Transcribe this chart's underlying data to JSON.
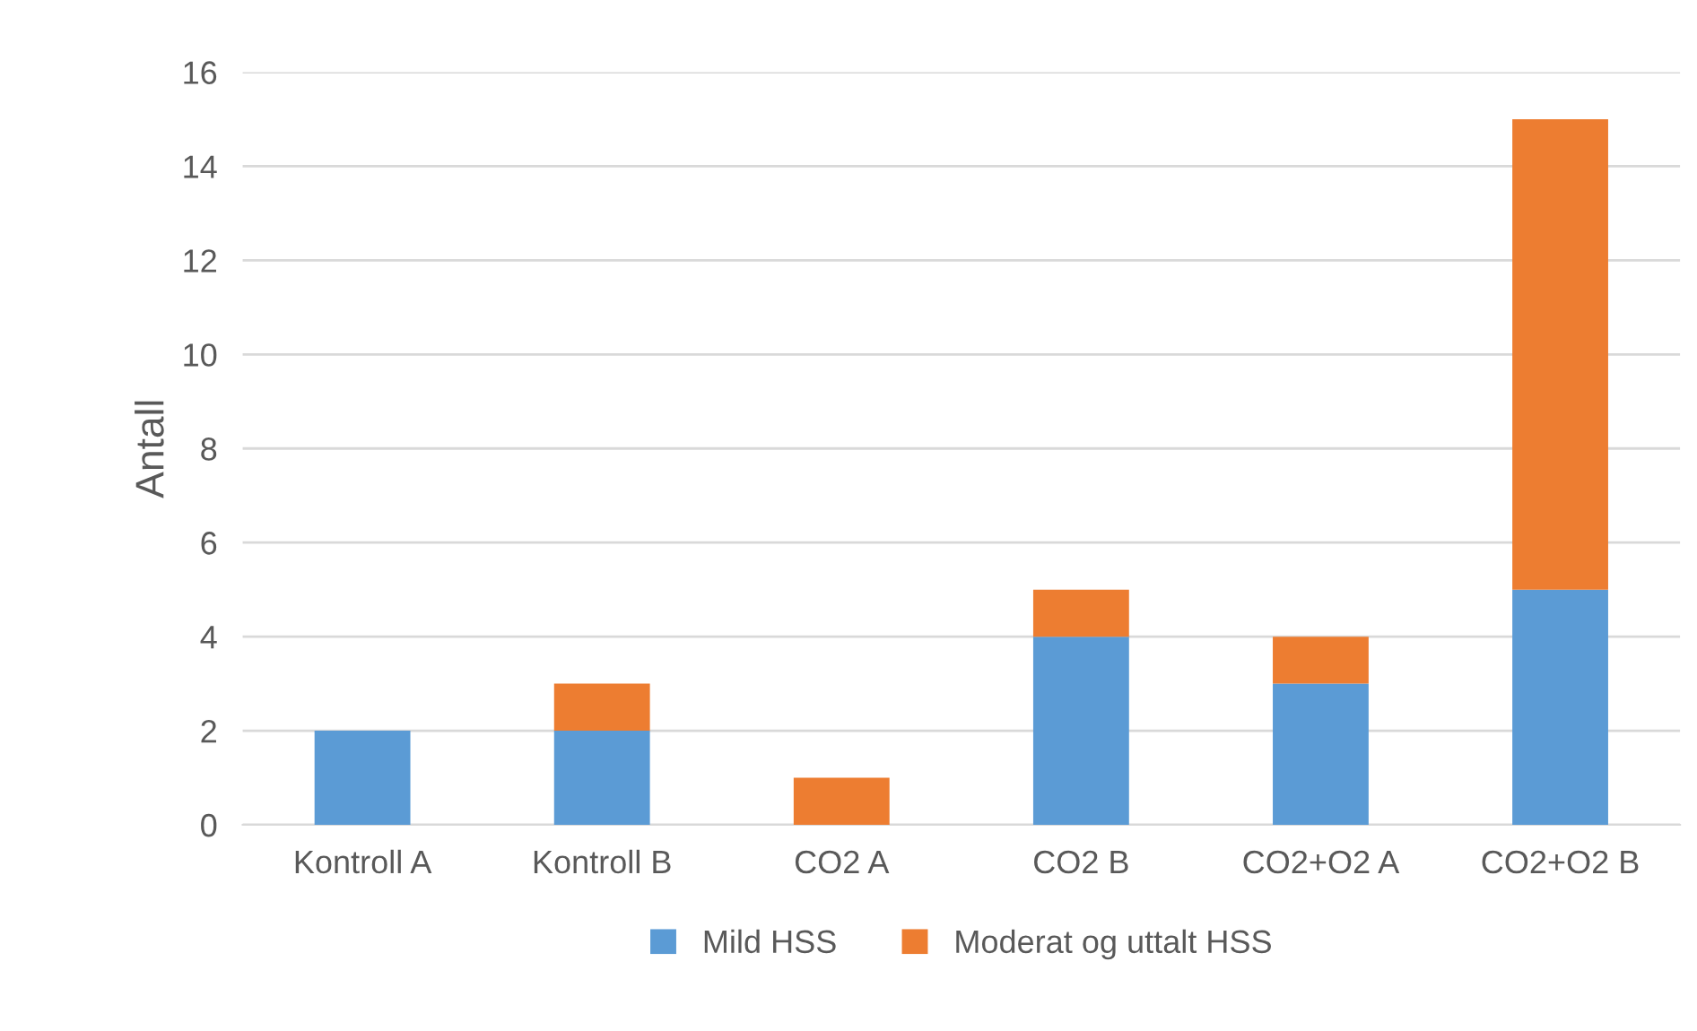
{
  "chart_data": {
    "type": "bar",
    "stacked": true,
    "ylabel": "Antall",
    "categories": [
      "Kontroll A",
      "Kontroll B",
      "CO2 A",
      "CO2 B",
      "CO2+O2 A",
      "CO2+O2 B"
    ],
    "series": [
      {
        "name": "Mild HSS",
        "color": "#5b9bd5",
        "values": [
          2,
          2,
          0,
          4,
          3,
          5
        ]
      },
      {
        "name": "Moderat og uttalt HSS",
        "color": "#ed7d31",
        "values": [
          0,
          1,
          1,
          1,
          1,
          10
        ]
      }
    ],
    "ylim": [
      0,
      16
    ],
    "yticks": [
      0,
      2,
      4,
      6,
      8,
      10,
      12,
      14,
      16
    ],
    "grid": "y",
    "legend": "bottom"
  }
}
